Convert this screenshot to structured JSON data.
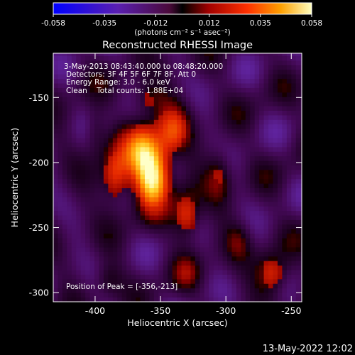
{
  "colorbar": {
    "ticks": [
      "-0.058",
      "-0.035",
      "-0.012",
      "0.012",
      "0.035",
      "0.058"
    ],
    "tick_values": [
      -0.058,
      -0.035,
      -0.012,
      0.012,
      0.035,
      0.058
    ],
    "min": -0.058,
    "max": 0.058,
    "units_text": "(photons cm⁻² s⁻¹ asec⁻²)"
  },
  "footer": {
    "timestamp": "13-May-2022 12:02"
  },
  "chart_data": {
    "type": "heatmap",
    "title": "Reconstructed RHESSI Image",
    "xlabel": "Heliocentric X (arcsec)",
    "ylabel": "Heliocentric Y (arcsec)",
    "xlim": [
      -432,
      -242
    ],
    "ylim": [
      -307,
      -116
    ],
    "xticks": [
      -400,
      -350,
      -300,
      -250
    ],
    "xtick_labels": [
      "-400",
      "-350",
      "-300",
      "-250"
    ],
    "yticks": [
      -150,
      -200,
      -250,
      -300
    ],
    "ytick_labels": [
      "-150",
      "-200",
      "-250",
      "-300"
    ],
    "annotations": [
      "3-May-2013 08:43:40.000 to 08:48:20.000",
      "Detectors: 3F 4F 5F 6F 7F 8F, Att 0",
      "Energy Range: 3.0 - 6.0 keV",
      "Clean    Total counts: 1.88E+04",
      "Position of Peak = [-356,-213]"
    ],
    "peak": {
      "x": -356,
      "y": -213
    },
    "sources": [
      {
        "x": -356,
        "y": -213,
        "amp": 0.058,
        "sx": 9,
        "sy": 16
      },
      {
        "x": -365,
        "y": -190,
        "amp": 0.042,
        "sx": 10,
        "sy": 14
      },
      {
        "x": -340,
        "y": -175,
        "amp": 0.032,
        "sx": 9,
        "sy": 14
      },
      {
        "x": -385,
        "y": -210,
        "amp": 0.03,
        "sx": 8,
        "sy": 16
      },
      {
        "x": -330,
        "y": -240,
        "amp": 0.03,
        "sx": 8,
        "sy": 14
      },
      {
        "x": -360,
        "y": -150,
        "amp": 0.02,
        "sx": 10,
        "sy": 10
      },
      {
        "x": -305,
        "y": -210,
        "amp": 0.022,
        "sx": 7,
        "sy": 14
      },
      {
        "x": -400,
        "y": -175,
        "amp": 0.018,
        "sx": 6,
        "sy": 12
      },
      {
        "x": -265,
        "y": -285,
        "amp": 0.028,
        "sx": 9,
        "sy": 12
      },
      {
        "x": -290,
        "y": -260,
        "amp": 0.016,
        "sx": 7,
        "sy": 10
      },
      {
        "x": -390,
        "y": -290,
        "amp": 0.016,
        "sx": 7,
        "sy": 9
      },
      {
        "x": -330,
        "y": -285,
        "amp": 0.014,
        "sx": 7,
        "sy": 9
      }
    ]
  }
}
